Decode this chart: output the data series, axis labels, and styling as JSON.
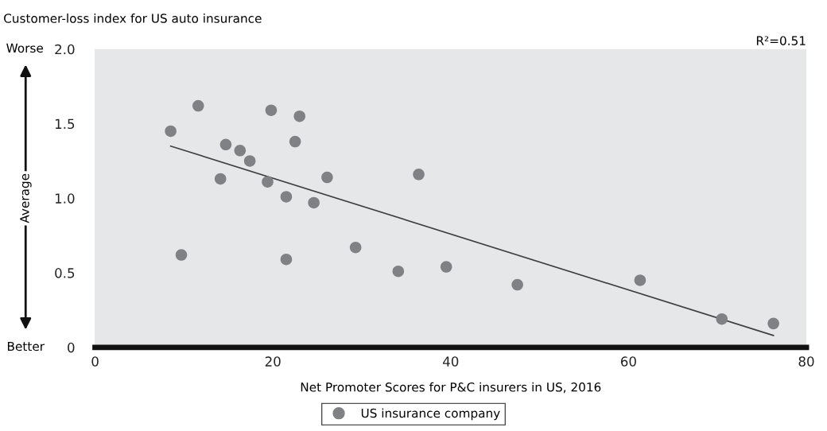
{
  "chart_data": {
    "type": "scatter",
    "title": "Customer-loss index for US auto insurance",
    "xlabel": "Net Promoter Scores for P&C insurers in US, 2016",
    "annotations": [
      "R²=0.51",
      "Worse",
      "Average",
      "Better"
    ],
    "xlim": [
      0,
      80
    ],
    "xticks": [
      0,
      20,
      40,
      60,
      80
    ],
    "ylim": [
      0,
      2
    ],
    "yticks": [
      {
        "value": 0,
        "label": "0"
      },
      {
        "value": 0.5,
        "label": "0.5"
      },
      {
        "value": 1,
        "label": "1.0"
      },
      {
        "value": 1.5,
        "label": "1.5"
      },
      {
        "value": 2,
        "label": "2.0"
      }
    ],
    "grid": false,
    "legend": "bottom",
    "marker": "circle",
    "series": [
      {
        "name": "US insurance company",
        "color": "#808184",
        "x": [
          8.5,
          11.6,
          9.7,
          14.7,
          14.1,
          16.3,
          17.4,
          19.8,
          19.4,
          22.5,
          23.0,
          21.5,
          21.5,
          24.6,
          26.1,
          29.3,
          34.1,
          36.4,
          39.5,
          47.5,
          61.3,
          70.5,
          76.3
        ],
        "values": [
          1.45,
          1.62,
          0.62,
          1.36,
          1.13,
          1.32,
          1.25,
          1.59,
          1.11,
          1.38,
          1.55,
          1.01,
          0.59,
          0.97,
          1.14,
          0.67,
          0.51,
          1.16,
          0.54,
          0.42,
          0.45,
          0.19,
          0.16
        ]
      },
      {
        "type": "line",
        "marker": "none",
        "color": "#404040",
        "x": [
          8.5,
          76.3
        ],
        "values": [
          1.35,
          0.08
        ]
      }
    ]
  }
}
